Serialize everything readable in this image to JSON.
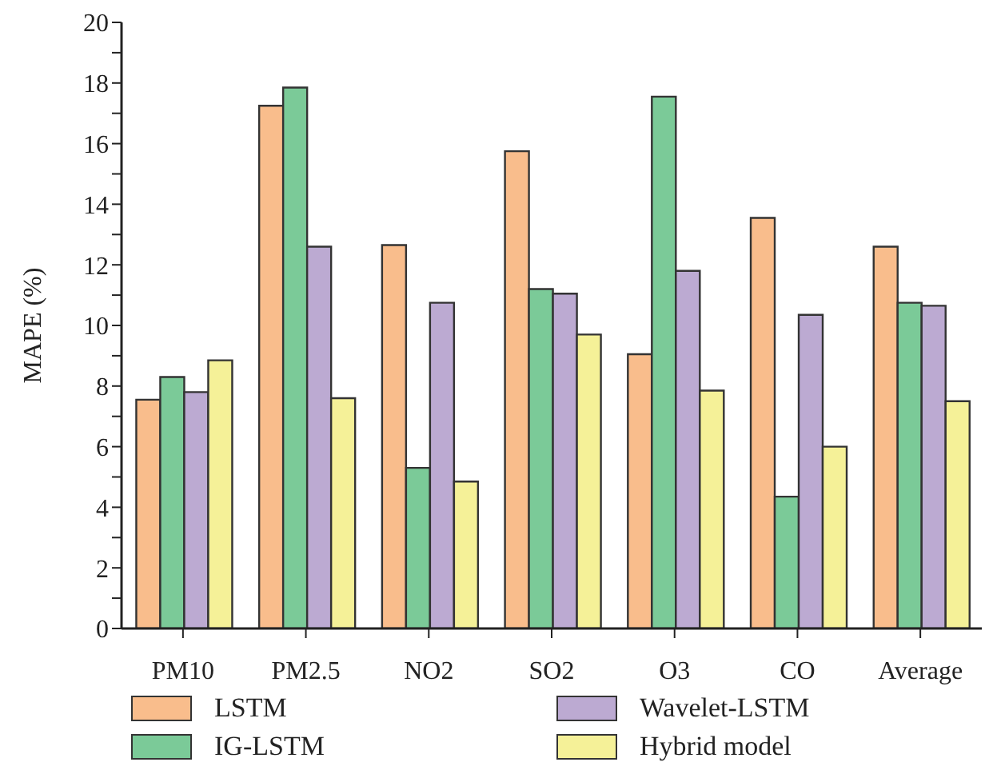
{
  "chart_data": {
    "type": "bar",
    "ylabel": "MAPE (%)",
    "categories": [
      "PM10",
      "PM2.5",
      "NO2",
      "SO2",
      "O3",
      "CO",
      "Average"
    ],
    "series": [
      {
        "name": "LSTM",
        "color": "#f9bd8c",
        "values": [
          7.55,
          17.25,
          12.65,
          15.75,
          9.05,
          13.55,
          12.6
        ]
      },
      {
        "name": "IG-LSTM",
        "color": "#7bca98",
        "values": [
          8.3,
          17.85,
          5.3,
          11.2,
          17.55,
          4.35,
          10.75
        ]
      },
      {
        "name": "Wavelet-LSTM",
        "color": "#bcaad2",
        "values": [
          7.8,
          12.6,
          10.75,
          11.05,
          11.8,
          10.35,
          10.65
        ]
      },
      {
        "name": "Hybrid model",
        "color": "#f5f198",
        "values": [
          8.85,
          7.6,
          4.85,
          9.7,
          7.85,
          6.0,
          7.5
        ]
      }
    ],
    "ylim": [
      0,
      20
    ],
    "yticks": [
      0,
      {
        "value": 1,
        "label": null
      },
      2,
      {
        "value": 3,
        "label": null
      },
      4,
      {
        "value": 5,
        "label": null
      },
      6,
      {
        "value": 7,
        "label": null
      },
      8,
      {
        "value": 9,
        "label": null
      },
      10,
      {
        "value": 11,
        "label": null
      },
      12,
      {
        "value": 13,
        "label": null
      },
      14,
      {
        "value": 15,
        "label": null
      },
      16,
      {
        "value": 17,
        "label": null
      },
      18,
      {
        "value": 19,
        "label": null
      },
      20
    ],
    "grid": false,
    "legend": "bottom"
  }
}
